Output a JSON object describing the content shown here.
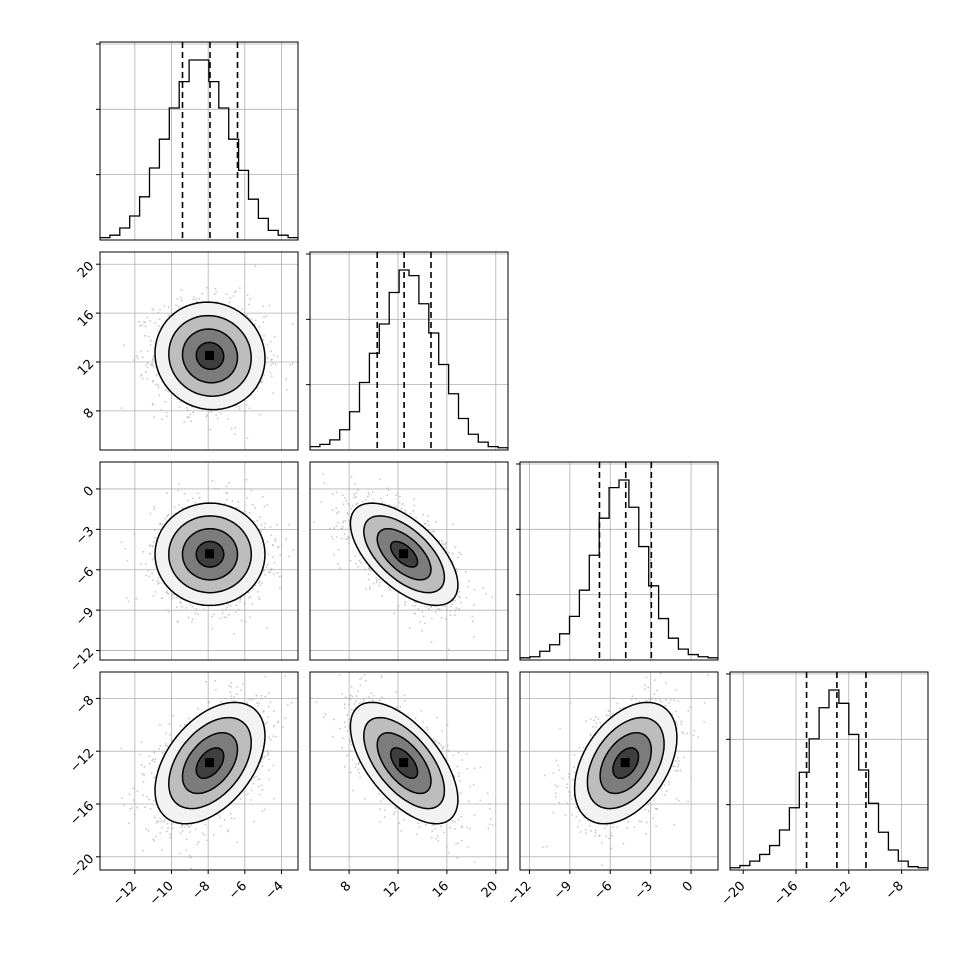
{
  "chart_data": {
    "type": "corner",
    "grid": true,
    "style": {
      "line_color": "#000000",
      "scatter_color": "#b0b0b0",
      "grid_color": "#b0b0b0",
      "background": "#ffffff"
    },
    "params": [
      {
        "id": "p0",
        "range": [
          -13.9,
          -3.1
        ],
        "ticks": [
          -12,
          -10,
          -8,
          -6,
          -4
        ],
        "tick_labels": [
          "−12",
          "−10",
          "−8",
          "−6",
          "−4"
        ],
        "mean": -7.9,
        "sd": 1.5,
        "quantiles": [
          -9.4,
          -7.9,
          -6.4
        ]
      },
      {
        "id": "p1",
        "range": [
          4.8,
          21.0
        ],
        "ticks": [
          8,
          12,
          16,
          20
        ],
        "tick_labels": [
          "8",
          "12",
          "16",
          "20"
        ],
        "mean": 12.5,
        "sd": 2.2,
        "quantiles": [
          10.3,
          12.5,
          14.7
        ]
      },
      {
        "id": "p2",
        "range": [
          -12.7,
          2.0
        ],
        "ticks": [
          -12,
          -9,
          -6,
          -3,
          0
        ],
        "tick_labels": [
          "−12",
          "−9",
          "−6",
          "−3",
          "0"
        ],
        "mean": -4.85,
        "sd": 1.9,
        "quantiles": [
          -6.8,
          -4.85,
          -2.95
        ]
      },
      {
        "id": "p3",
        "range": [
          -21.0,
          -6.0
        ],
        "ticks": [
          -20,
          -16,
          -12,
          -8
        ],
        "tick_labels": [
          "−20",
          "−16",
          "−12",
          "−8"
        ],
        "mean": -12.9,
        "sd": 2.3,
        "quantiles": [
          -15.2,
          -12.9,
          -10.7
        ]
      }
    ],
    "correlations": [
      {
        "pair": [
          0,
          1
        ],
        "r": -0.05
      },
      {
        "pair": [
          0,
          2
        ],
        "r": 0.0
      },
      {
        "pair": [
          1,
          2
        ],
        "r": -0.6
      },
      {
        "pair": [
          0,
          3
        ],
        "r": 0.45
      },
      {
        "pair": [
          1,
          3
        ],
        "r": -0.6
      },
      {
        "pair": [
          2,
          3
        ],
        "r": 0.42
      }
    ],
    "histograms": [
      {
        "param": 0,
        "bins": 20,
        "counts": [
          2,
          4,
          10,
          20,
          36,
          60,
          84,
          110,
          132,
          150,
          150,
          132,
          110,
          84,
          58,
          34,
          18,
          8,
          4,
          2
        ]
      },
      {
        "param": 1,
        "bins": 20,
        "counts": [
          3,
          5,
          9,
          18,
          34,
          60,
          86,
          112,
          140,
          160,
          155,
          130,
          104,
          76,
          50,
          28,
          14,
          7,
          3,
          2
        ]
      },
      {
        "param": 2,
        "bins": 20,
        "counts": [
          2,
          3,
          8,
          14,
          24,
          40,
          64,
          96,
          130,
          158,
          165,
          140,
          104,
          68,
          38,
          20,
          10,
          5,
          3,
          2
        ]
      },
      {
        "param": 3,
        "bins": 20,
        "counts": [
          2,
          4,
          8,
          14,
          22,
          36,
          56,
          88,
          118,
          146,
          162,
          150,
          122,
          90,
          60,
          34,
          18,
          8,
          3,
          2
        ]
      }
    ],
    "contour_levels_sigma": [
      0.5,
      1.0,
      1.5,
      2.0
    ]
  }
}
